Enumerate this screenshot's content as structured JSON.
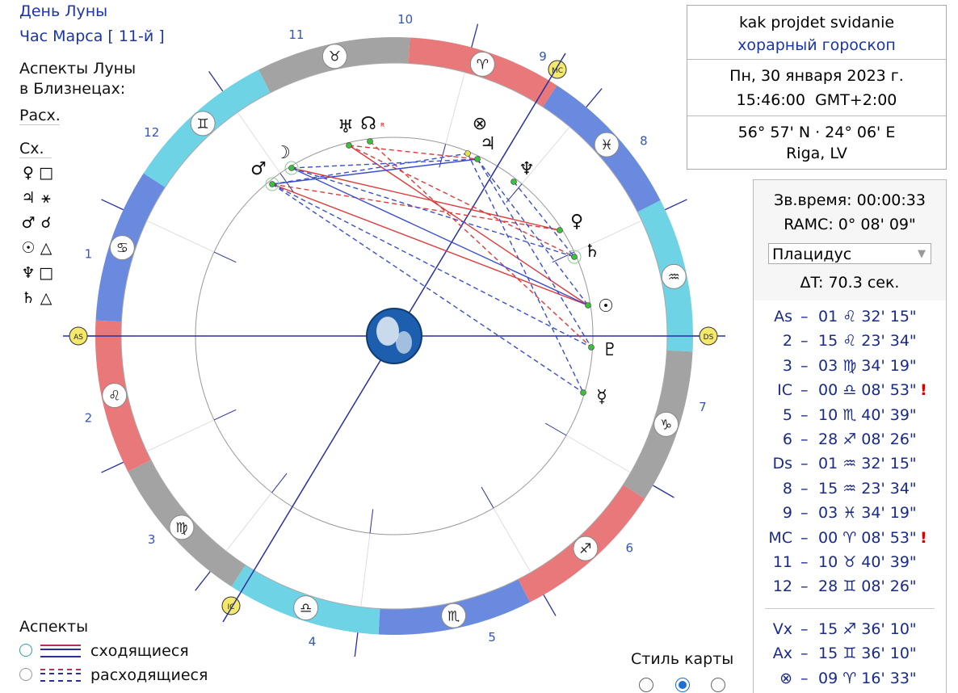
{
  "moon_info": {
    "day": "День Луны",
    "hour": "Час Марса [ 11-й ]"
  },
  "moon_aspects": {
    "title1": "Аспекты Луны",
    "title2": "в Близнецах:",
    "rasx": "Расх.",
    "sx": "Сх.",
    "rows": [
      {
        "p": "♀",
        "a": "□"
      },
      {
        "p": "♃",
        "a": "⚹"
      },
      {
        "p": "♂",
        "a": "☌"
      },
      {
        "p": "☉",
        "a": "△"
      },
      {
        "p": "♆",
        "a": "□"
      },
      {
        "p": "♄",
        "a": "△"
      }
    ]
  },
  "legend": {
    "title": "Аспекты",
    "applying": "сходящиеся",
    "separating": "расходящиеся"
  },
  "style": {
    "label": "Стиль карты",
    "selected_index": 1
  },
  "infobox": {
    "question": "kak projdet svidanie",
    "type": "хорарный гороскоп",
    "date": "Пн, 30 января 2023 г.",
    "time": "15:46:00",
    "tz": "GMT+2:00",
    "coords": "56° 57' N · 24° 06' E",
    "place": "Riga, LV"
  },
  "sidereal": {
    "st": "Зв.время: 00:00:33",
    "ramc": "RAMC: 0° 08' 09\"",
    "system": "Плацидус",
    "dt": "ΔT: 70.3 сек."
  },
  "cusps": [
    {
      "name": "As",
      "val": "01 ♌ 32' 15\"",
      "excl": ""
    },
    {
      "name": "2",
      "val": "15 ♌ 23' 34\"",
      "excl": ""
    },
    {
      "name": "3",
      "val": "03 ♍ 34' 19\"",
      "excl": ""
    },
    {
      "name": "IC",
      "val": "00 ♎ 08' 53\"",
      "excl": "!"
    },
    {
      "name": "5",
      "val": "10 ♏ 40' 39\"",
      "excl": ""
    },
    {
      "name": "6",
      "val": "28 ♐ 08' 26\"",
      "excl": ""
    },
    {
      "name": "Ds",
      "val": "01 ♒ 32' 15\"",
      "excl": ""
    },
    {
      "name": "8",
      "val": "15 ♒ 23' 34\"",
      "excl": ""
    },
    {
      "name": "9",
      "val": "03 ♓ 34' 19\"",
      "excl": ""
    },
    {
      "name": "MC",
      "val": "00 ♈ 08' 53\"",
      "excl": "!"
    },
    {
      "name": "11",
      "val": "10 ♉ 40' 39\"",
      "excl": ""
    },
    {
      "name": "12",
      "val": "28 ♊ 08' 26\"",
      "excl": ""
    }
  ],
  "extras": [
    {
      "name": "Vx",
      "val": "15 ♐ 36' 10\""
    },
    {
      "name": "Ax",
      "val": "15 ♊ 36' 10\""
    },
    {
      "name": "⊗",
      "val": "09 ♈ 16' 33\""
    }
  ],
  "wheel": {
    "signs": [
      {
        "glyph": "♉",
        "fill": "#a3a3a3"
      },
      {
        "glyph": "♈",
        "fill": "#e8787a"
      },
      {
        "glyph": "♓",
        "fill": "#6a8ae0"
      },
      {
        "glyph": "♒",
        "fill": "#6fd3e6"
      },
      {
        "glyph": "♑",
        "fill": "#a3a3a3"
      },
      {
        "glyph": "♐",
        "fill": "#e8787a"
      },
      {
        "glyph": "♏",
        "fill": "#6a8ae0"
      },
      {
        "glyph": "♎",
        "fill": "#6fd3e6"
      },
      {
        "glyph": "♍",
        "fill": "#a3a3a3"
      },
      {
        "glyph": "♌",
        "fill": "#e8787a"
      },
      {
        "glyph": "♋",
        "fill": "#6a8ae0"
      },
      {
        "glyph": "♊",
        "fill": "#6fd3e6"
      }
    ],
    "house_numbers": [
      "10",
      "9",
      "8",
      "7",
      "6",
      "5",
      "4",
      "3",
      "2",
      "1",
      "12",
      "11"
    ],
    "angles": [
      "AS",
      "DS",
      "MC",
      "IC"
    ],
    "planets": [
      {
        "glyph": "☽",
        "name": "moon"
      },
      {
        "glyph": "♂",
        "name": "mars"
      },
      {
        "glyph": "♅",
        "name": "uranus"
      },
      {
        "glyph": "☊",
        "name": "node",
        "retro": "R"
      },
      {
        "glyph": "⊗",
        "name": "fortune"
      },
      {
        "glyph": "♃",
        "name": "jupiter"
      },
      {
        "glyph": "♆",
        "name": "neptune"
      },
      {
        "glyph": "♀",
        "name": "venus"
      },
      {
        "glyph": "♄",
        "name": "saturn"
      },
      {
        "glyph": "☉",
        "name": "sun"
      },
      {
        "glyph": "♇",
        "name": "pluto"
      },
      {
        "glyph": "☿",
        "name": "mercury"
      }
    ],
    "colors": {
      "applying": "#3a4fd0",
      "separating": "#e03a3a",
      "cusp_line": "#2a2fa0"
    }
  }
}
